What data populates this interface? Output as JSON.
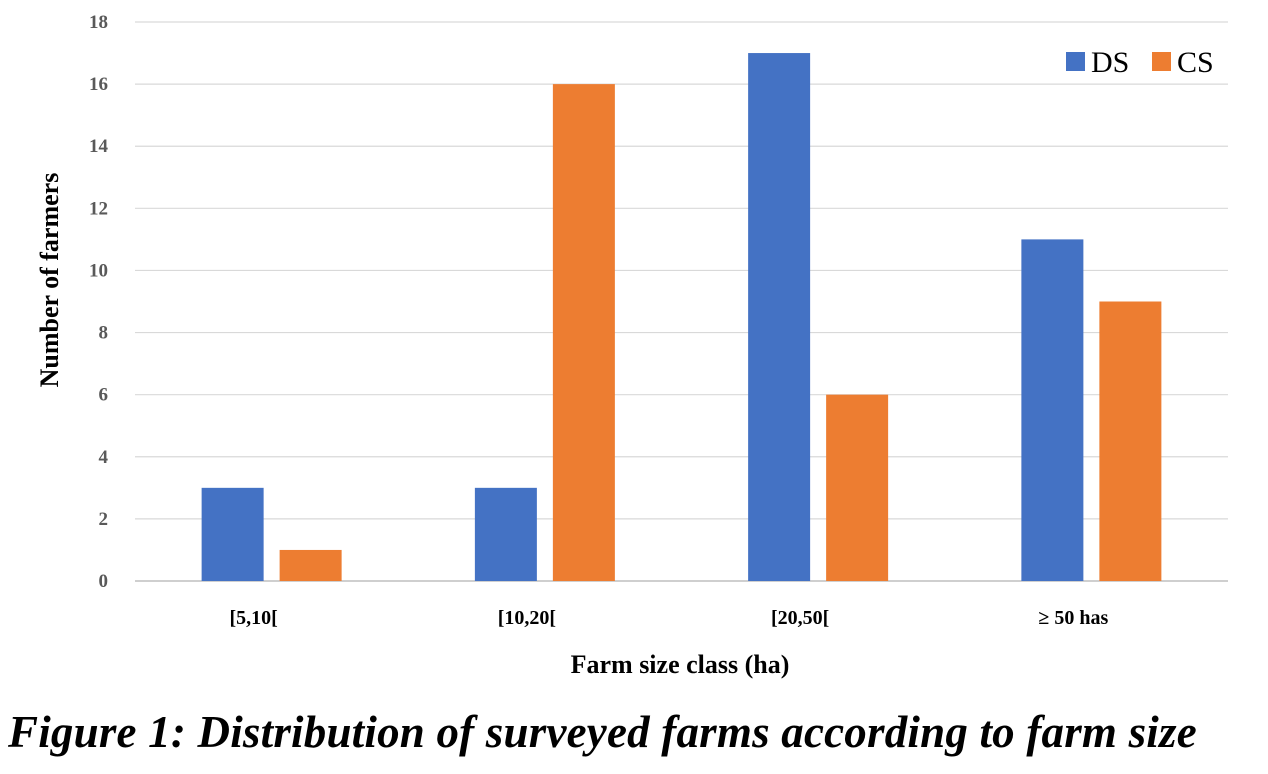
{
  "chart_data": {
    "type": "bar",
    "categories": [
      "[5,10[",
      "[10,20[",
      "[20,50[",
      "≥ 50 has"
    ],
    "series": [
      {
        "name": "DS",
        "values": [
          3,
          3,
          17,
          11
        ],
        "color": "#4472C4"
      },
      {
        "name": "CS",
        "values": [
          1,
          16,
          6,
          9
        ],
        "color": "#ED7D31"
      }
    ],
    "xlabel": "Farm size class (ha)",
    "ylabel": "Number of farmers",
    "ylim": [
      0,
      18
    ],
    "yticks": [
      0,
      2,
      4,
      6,
      8,
      10,
      12,
      14,
      16,
      18
    ],
    "grid": true,
    "legend_position": "top-right"
  },
  "caption": "Figure 1: Distribution of surveyed farms according to farm size"
}
